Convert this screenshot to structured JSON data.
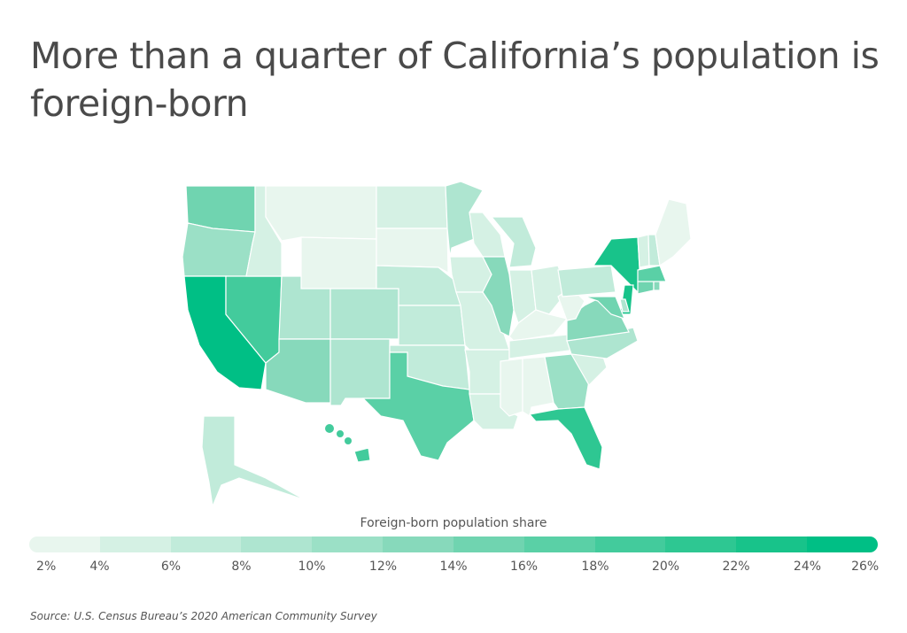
{
  "title": "More than a quarter of California’s population is foreign-born",
  "legend": {
    "title": "Foreign-born population share",
    "ticks": [
      "2%",
      "4%",
      "6%",
      "8%",
      "10%",
      "12%",
      "14%",
      "16%",
      "18%",
      "20%",
      "22%",
      "24%",
      "26%"
    ],
    "colors": [
      "#e8f6ee",
      "#d5f1e4",
      "#c1ebda",
      "#aee5d0",
      "#9be0c6",
      "#87d9bb",
      "#70d4b0",
      "#5ad0a6",
      "#43cb9c",
      "#2ec792",
      "#18c38a",
      "#00bf85"
    ],
    "min": 2,
    "max": 26
  },
  "source": "Source:  U.S. Census Bureau’s 2020 American Community Survey",
  "map_data": {
    "metric": "Foreign-born population share (%)",
    "states": {
      "CA": 26.6,
      "NJ": 22.9,
      "NY": 22.6,
      "FL": 20.8,
      "NV": 19.3,
      "HI": 18.2,
      "MA": 17.3,
      "TX": 17.1,
      "MD": 15.2,
      "WA": 14.7,
      "CT": 14.6,
      "IL": 13.9,
      "RI": 13.6,
      "AZ": 13.1,
      "VA": 12.5,
      "GA": 10.1,
      "OR": 10.0,
      "DE": 9.7,
      "CO": 9.5,
      "NM": 9.4,
      "UT": 8.6,
      "MN": 8.6,
      "NC": 8.1,
      "AK": 7.9,
      "NE": 7.2,
      "PA": 7.1,
      "KS": 7.1,
      "MI": 7.0,
      "OK": 6.2,
      "NH": 6.1,
      "ID": 5.9,
      "IA": 5.6,
      "IN": 5.5,
      "TN": 5.3,
      "WI": 5.0,
      "AR": 5.0,
      "SC": 5.0,
      "OH": 4.9,
      "VT": 4.8,
      "MO": 4.2,
      "ND": 4.2,
      "LA": 4.1,
      "KY": 3.9,
      "ME": 3.8,
      "SD": 3.6,
      "AL": 3.5,
      "WY": 3.4,
      "MT": 2.2,
      "MS": 2.2,
      "WV": 1.6
    }
  }
}
